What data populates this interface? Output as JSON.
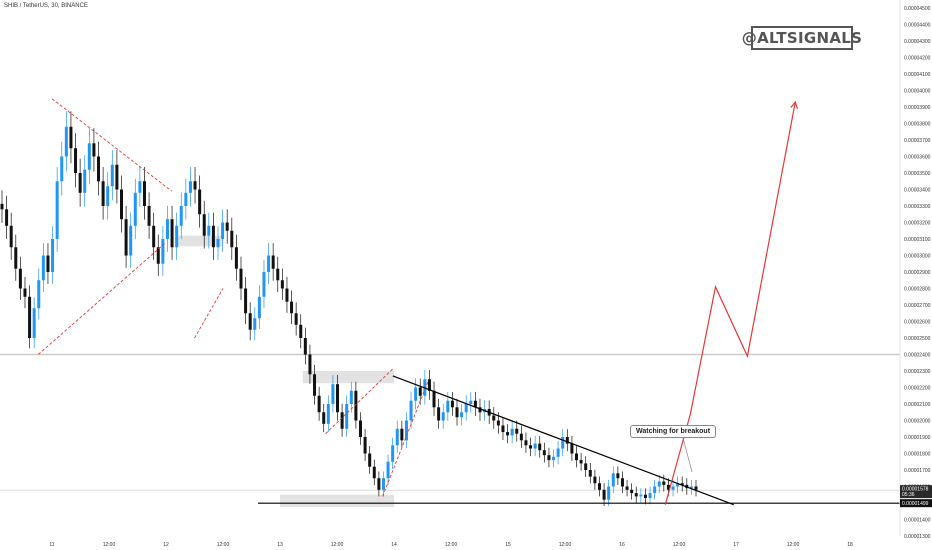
{
  "symbol_title": "SHIB / TetherUS, 30, BINANCE",
  "watermark": "@ALTSIGNALS",
  "annotation": "Watching for breakout",
  "colors": {
    "up": "#2196f3",
    "down": "#111111",
    "trend_red": "#e53935",
    "projection": "#e53935",
    "trendline": "#000000",
    "zone": "#d6d6d6"
  },
  "chart_data": {
    "type": "candlestick",
    "title": "",
    "xlabel": "",
    "ylabel": "",
    "x_tick_labels": [
      "11",
      "12:00",
      "12",
      "12:00",
      "13",
      "12:00",
      "14",
      "12:00",
      "15",
      "12:00",
      "16",
      "12:00",
      "17",
      "12:00",
      "18"
    ],
    "y_tick_labels": [
      "0.00004500",
      "0.00004400",
      "0.00004300",
      "0.00004200",
      "0.00004100",
      "0.00004000",
      "0.00003900",
      "0.00003800",
      "0.00003700",
      "0.00003600",
      "0.00003500",
      "0.00003400",
      "0.00003300",
      "0.00003200",
      "0.00003100",
      "0.00003000",
      "0.00002900",
      "0.00002800",
      "0.00002700",
      "0.00002600",
      "0.00002500",
      "0.00002400",
      "0.00002300",
      "0.00002200",
      "0.00002100",
      "0.00002000",
      "0.00001900",
      "0.00001800",
      "0.00001700",
      "0.00001600",
      "0.00001500",
      "0.00001400",
      "0.00001300"
    ],
    "ylim": [
      1.3e-05,
      4.5e-05
    ],
    "xlim_days": [
      10.5,
      18.2
    ],
    "last_price_label": "0.00001578",
    "last_price_countdown": "05:36",
    "last_price": 1.578e-05,
    "support_label": "0.00001499",
    "support": 1.499e-05,
    "resistance": 2.4e-05,
    "closes": [
      3.28e-05,
      3.18e-05,
      3.05e-05,
      2.92e-05,
      2.8e-05,
      2.75e-05,
      2.5e-05,
      2.68e-05,
      2.85e-05,
      3e-05,
      2.9e-05,
      3.1e-05,
      3.45e-05,
      3.6e-05,
      3.78e-05,
      3.65e-05,
      3.5e-05,
      3.38e-05,
      3.52e-05,
      3.68e-05,
      3.6e-05,
      3.45e-05,
      3.3e-05,
      3.42e-05,
      3.55e-05,
      3.4e-05,
      3.22e-05,
      3e-05,
      3.18e-05,
      3.38e-05,
      3.45e-05,
      3.3e-05,
      3.18e-05,
      3.05e-05,
      2.95e-05,
      3.1e-05,
      3.22e-05,
      3.05e-05,
      3.18e-05,
      3.3e-05,
      3.38e-05,
      3.45e-05,
      3.4e-05,
      3.25e-05,
      3.12e-05,
      3.18e-05,
      3.05e-05,
      3.1e-05,
      3.2e-05,
      3.15e-05,
      3.05e-05,
      2.92e-05,
      2.8e-05,
      2.65e-05,
      2.55e-05,
      2.62e-05,
      2.75e-05,
      2.9e-05,
      3e-05,
      2.92e-05,
      2.85e-05,
      2.8e-05,
      2.72e-05,
      2.65e-05,
      2.58e-05,
      2.5e-05,
      2.4e-05,
      2.28e-05,
      2.15e-05,
      2.05e-05,
      1.98e-05,
      2.1e-05,
      2.22e-05,
      2.05e-05,
      1.95e-05,
      2.1e-05,
      2.18e-05,
      2e-05,
      1.9e-05,
      1.8e-05,
      1.72e-05,
      1.65e-05,
      1.58e-05,
      1.65e-05,
      1.75e-05,
      1.85e-05,
      1.95e-05,
      1.88e-05,
      2e-05,
      2.12e-05,
      2.2e-05,
      2.15e-05,
      2.25e-05,
      2.18e-05,
      2.08e-05,
      2e-05,
      2.05e-05,
      2.12e-05,
      2.08e-05,
      2.02e-05,
      2.05e-05,
      2.1e-05,
      2.12e-05,
      2.08e-05,
      2.05e-05,
      2.07e-05,
      2.03e-05,
      2e-05,
      1.97e-05,
      1.93e-05,
      1.91e-05,
      1.95e-05,
      1.92e-05,
      1.88e-05,
      1.85e-05,
      1.83e-05,
      1.86e-05,
      1.82e-05,
      1.79e-05,
      1.76e-05,
      1.78e-05,
      1.83e-05,
      1.9e-05,
      1.86e-05,
      1.8e-05,
      1.76e-05,
      1.74e-05,
      1.7e-05,
      1.66e-05,
      1.62e-05,
      1.58e-05,
      1.52e-05,
      1.6e-05,
      1.68e-05,
      1.65e-05,
      1.6e-05,
      1.58e-05,
      1.56e-05,
      1.54e-05,
      1.55e-05,
      1.53e-05,
      1.56e-05,
      1.6e-05,
      1.63e-05,
      1.61e-05,
      1.58e-05,
      1.6e-05,
      1.62e-05,
      1.61e-05,
      1.59e-05,
      1.6e-05,
      1.58e-05
    ],
    "red_trendlines": [
      {
        "from": [
          11.0,
          3.95e-05
        ],
        "to": [
          12.05,
          3.39e-05
        ]
      },
      {
        "from": [
          10.88,
          2.4e-05
        ],
        "to": [
          12.0,
          3.08e-05
        ]
      },
      {
        "from": [
          12.25,
          2.5e-05
        ],
        "to": [
          12.5,
          2.8e-05
        ]
      },
      {
        "from": [
          13.9,
          1.54e-05
        ],
        "to": [
          14.3,
          2.24e-05
        ]
      },
      {
        "from": [
          13.4,
          1.92e-05
        ],
        "to": [
          14.0,
          2.32e-05
        ]
      }
    ],
    "descending_trendline": {
      "from": [
        13.99,
        2.27e-05
      ],
      "to": [
        16.98,
        1.49e-05
      ]
    },
    "projection_path": [
      [
        16.38,
        1.49e-05
      ],
      [
        16.6,
        2.04e-05
      ],
      [
        16.82,
        2.81e-05
      ],
      [
        17.1,
        2.39e-05
      ],
      [
        17.52,
        3.93e-05
      ]
    ],
    "zones": [
      {
        "x": [
          12.1,
          12.5
        ],
        "y": [
          3.12e-05,
          3.08e-05
        ]
      },
      {
        "x": [
          13.2,
          14.0
        ],
        "y": [
          2.3e-05,
          2.25e-05
        ]
      },
      {
        "x": [
          13.0,
          14.0
        ],
        "y": [
          1.55e-05,
          1.5e-05
        ]
      }
    ]
  }
}
